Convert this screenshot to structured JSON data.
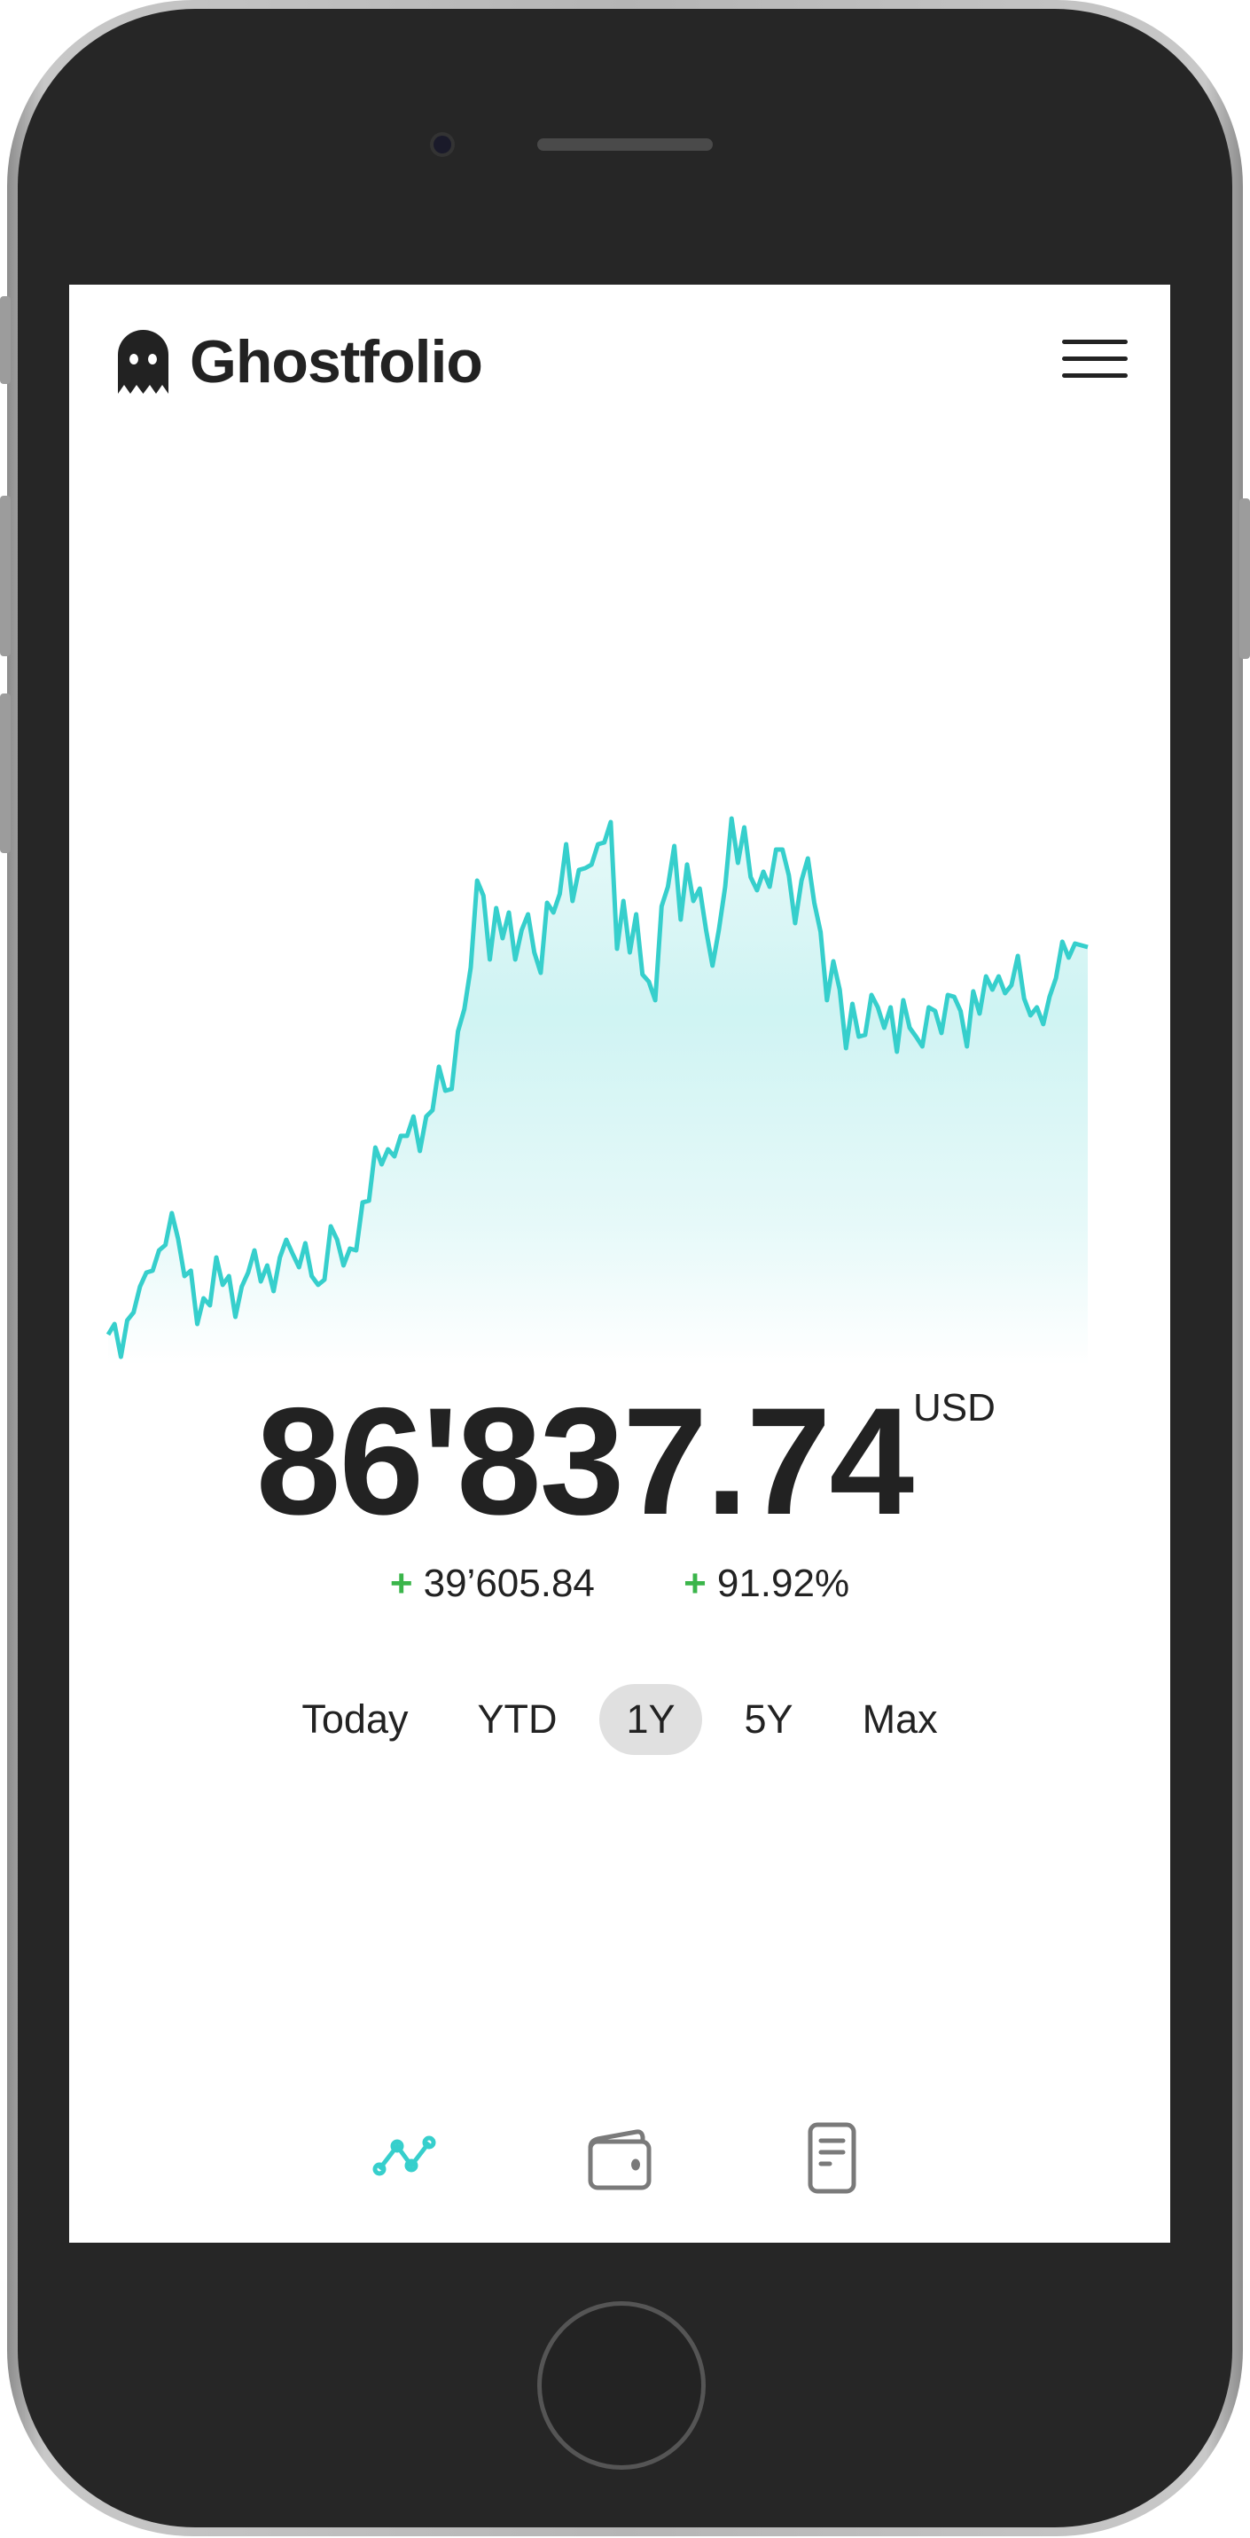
{
  "app": {
    "title": "Ghostfolio"
  },
  "colors": {
    "accent": "#36cfcc",
    "positive": "#3ab54a",
    "text": "#222222",
    "nav_inactive": "#7a7a7a",
    "active_range_bg": "#e0e0e0"
  },
  "summary": {
    "value": "86'837.74",
    "currency": "USD",
    "change_sign": "+",
    "change_absolute": "39’605.84",
    "change_percent_sign": "+",
    "change_percent": "91.92%"
  },
  "ranges": [
    {
      "label": "Today",
      "active": false
    },
    {
      "label": "YTD",
      "active": false
    },
    {
      "label": "1Y",
      "active": true
    },
    {
      "label": "5Y",
      "active": false
    },
    {
      "label": "Max",
      "active": false
    }
  ],
  "nav": [
    {
      "icon": "analysis-chart-icon",
      "active": true
    },
    {
      "icon": "wallet-icon",
      "active": false
    },
    {
      "icon": "document-icon",
      "active": false
    }
  ],
  "chart_data": {
    "type": "area",
    "title": "",
    "xlabel": "",
    "ylabel": "",
    "grid": false,
    "legend": "none",
    "series": [
      {
        "values": [
          47050,
          48140,
          44770,
          48510,
          49330,
          51970,
          53420,
          53610,
          55700,
          56250,
          59520,
          56880,
          53060,
          53610,
          48140,
          50780,
          50050,
          54970,
          52150,
          53060,
          48870,
          51970,
          53420,
          55700,
          52510,
          54150,
          51510,
          54970,
          56790,
          55340,
          53970,
          56430,
          53060,
          52150,
          52690,
          58160,
          56790,
          54150,
          55880,
          55700,
          60620,
          60800,
          66260,
          64530,
          66080,
          65350,
          67450,
          67450,
          69450,
          65900,
          69450,
          70090,
          74550,
          72090,
          72270,
          78190,
          80470,
          84740,
          93670,
          92120,
          85560,
          90840,
          87750,
          90390,
          85560,
          88570,
          90210,
          86290,
          84200,
          91390,
          90390,
          92300,
          97400,
          91570,
          94760,
          94940,
          95310,
          97400,
          97580,
          99680,
          86660,
          91570,
          86290,
          90210,
          84020,
          83290,
          81380,
          91030,
          93030,
          97220,
          89660,
          95310,
          91570,
          92850,
          88570,
          84930,
          88570,
          93030,
          100040,
          95490,
          99130,
          94030,
          92670,
          94580,
          93030,
          96850,
          96850,
          94210,
          89300,
          93670,
          95940,
          91390,
          88390,
          81380,
          85380,
          82470,
          76460,
          81010,
          77640,
          77820,
          81920,
          80650,
          78550,
          80650,
          76090,
          81380,
          78550,
          77640,
          76640,
          80650,
          80280,
          78010,
          81920,
          81740,
          80280,
          76640,
          82290,
          80010,
          83830,
          82470,
          83830,
          82100,
          82920,
          85930,
          81560,
          79830,
          80650,
          78920,
          81740,
          83650,
          87390,
          85750,
          87200,
          87020,
          86838
        ]
      }
    ]
  }
}
